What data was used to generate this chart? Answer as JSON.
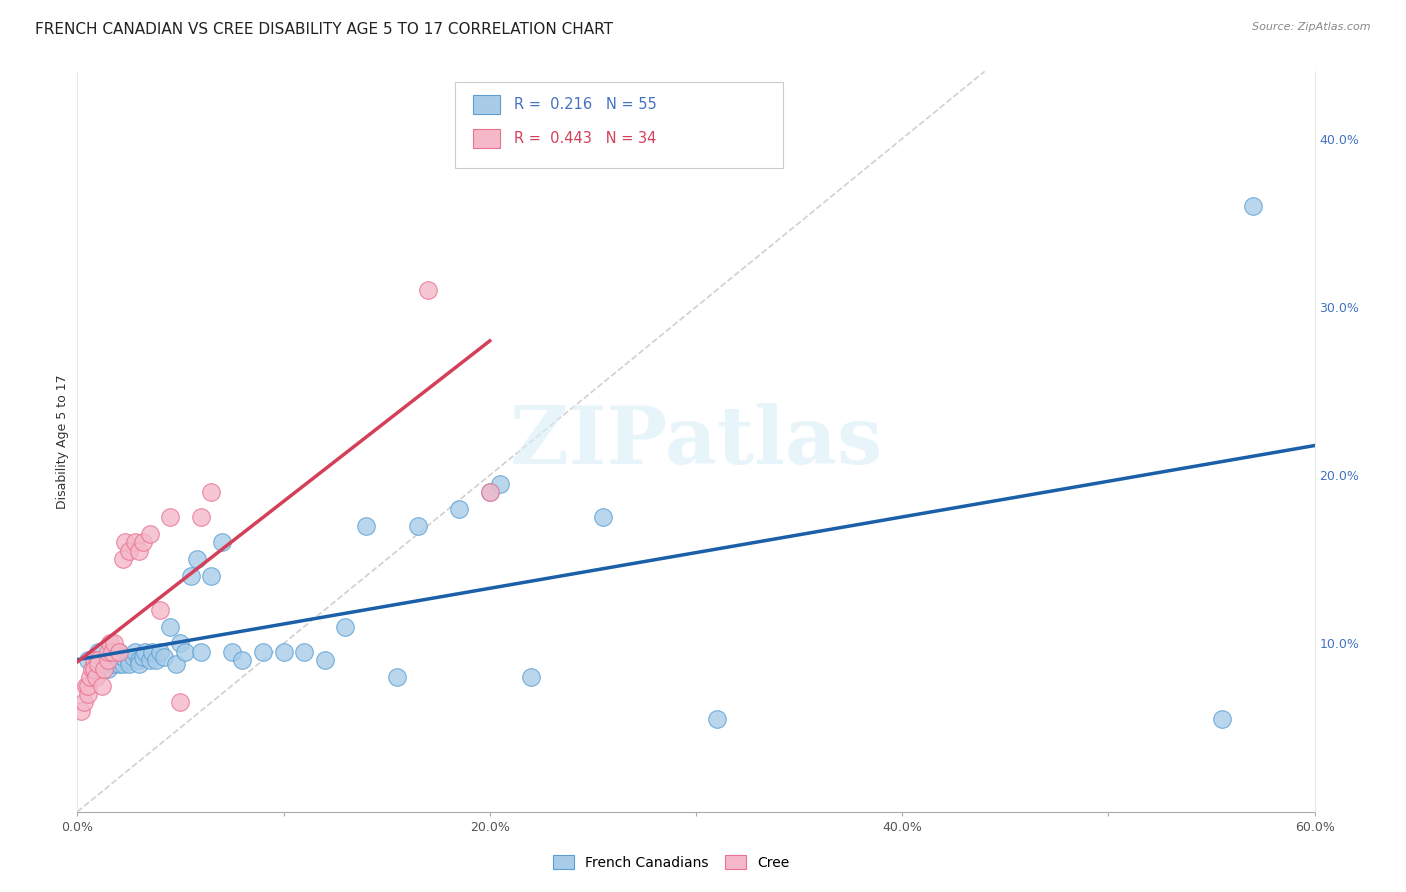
{
  "title": "FRENCH CANADIAN VS CREE DISABILITY AGE 5 TO 17 CORRELATION CHART",
  "source": "Source: ZipAtlas.com",
  "ylabel": "Disability Age 5 to 17",
  "xlim": [
    0.0,
    0.6
  ],
  "ylim": [
    0.0,
    0.44
  ],
  "xticks": [
    0.0,
    0.1,
    0.2,
    0.3,
    0.4,
    0.5,
    0.6
  ],
  "xticklabels": [
    "0.0%",
    "",
    "20.0%",
    "",
    "40.0%",
    "",
    "60.0%"
  ],
  "yticks_right": [
    0.1,
    0.2,
    0.3,
    0.4
  ],
  "yticklabels_right": [
    "10.0%",
    "20.0%",
    "30.0%",
    "40.0%"
  ],
  "legend_labels": [
    "French Canadians",
    "Cree"
  ],
  "blue_R": "0.216",
  "blue_N": "55",
  "pink_R": "0.443",
  "pink_N": "34",
  "blue_face": "#a8cce8",
  "pink_face": "#f4b8c8",
  "blue_edge": "#5a9fd4",
  "pink_edge": "#e87090",
  "blue_line": "#1a5fa8",
  "pink_line": "#d43f5a",
  "ref_line_color": "#c8c8c8",
  "tick_color": "#4472c4",
  "watermark": "ZIPatlas",
  "blue_x": [
    0.005,
    0.008,
    0.01,
    0.01,
    0.012,
    0.013,
    0.015,
    0.015,
    0.017,
    0.018,
    0.02,
    0.02,
    0.02,
    0.022,
    0.022,
    0.025,
    0.025,
    0.027,
    0.028,
    0.03,
    0.03,
    0.032,
    0.033,
    0.035,
    0.036,
    0.038,
    0.04,
    0.042,
    0.045,
    0.048,
    0.05,
    0.052,
    0.055,
    0.058,
    0.06,
    0.065,
    0.07,
    0.075,
    0.08,
    0.09,
    0.1,
    0.11,
    0.12,
    0.13,
    0.14,
    0.155,
    0.165,
    0.185,
    0.2,
    0.205,
    0.22,
    0.255,
    0.31,
    0.555,
    0.57
  ],
  "blue_y": [
    0.09,
    0.085,
    0.095,
    0.085,
    0.09,
    0.088,
    0.09,
    0.085,
    0.092,
    0.088,
    0.09,
    0.088,
    0.095,
    0.088,
    0.092,
    0.09,
    0.088,
    0.092,
    0.095,
    0.09,
    0.088,
    0.092,
    0.095,
    0.09,
    0.095,
    0.09,
    0.095,
    0.092,
    0.11,
    0.088,
    0.1,
    0.095,
    0.14,
    0.15,
    0.095,
    0.14,
    0.16,
    0.095,
    0.09,
    0.095,
    0.095,
    0.095,
    0.09,
    0.11,
    0.17,
    0.08,
    0.17,
    0.18,
    0.19,
    0.195,
    0.08,
    0.175,
    0.055,
    0.055,
    0.36
  ],
  "pink_x": [
    0.002,
    0.003,
    0.004,
    0.005,
    0.005,
    0.006,
    0.007,
    0.008,
    0.008,
    0.009,
    0.01,
    0.01,
    0.012,
    0.013,
    0.015,
    0.015,
    0.016,
    0.017,
    0.018,
    0.02,
    0.022,
    0.023,
    0.025,
    0.028,
    0.03,
    0.032,
    0.035,
    0.04,
    0.045,
    0.05,
    0.06,
    0.065,
    0.17,
    0.2
  ],
  "pink_y": [
    0.06,
    0.065,
    0.075,
    0.07,
    0.075,
    0.08,
    0.085,
    0.09,
    0.085,
    0.08,
    0.09,
    0.088,
    0.075,
    0.085,
    0.09,
    0.095,
    0.1,
    0.095,
    0.1,
    0.095,
    0.15,
    0.16,
    0.155,
    0.16,
    0.155,
    0.16,
    0.165,
    0.12,
    0.175,
    0.065,
    0.175,
    0.19,
    0.31,
    0.19
  ],
  "background_color": "#ffffff",
  "title_fontsize": 11,
  "axis_fontsize": 9
}
